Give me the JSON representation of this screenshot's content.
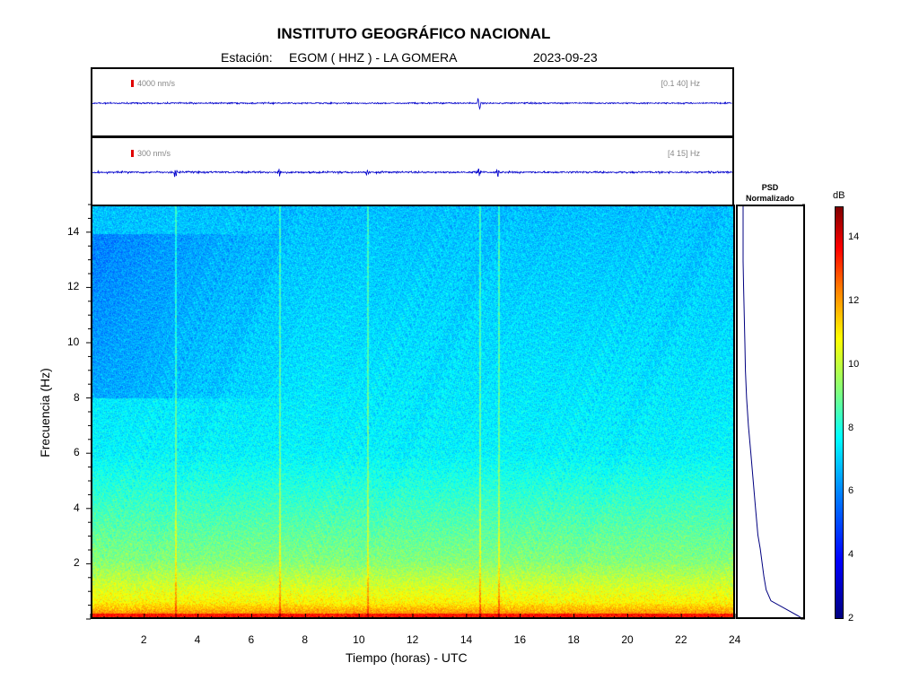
{
  "header": {
    "title": "INSTITUTO GEOGRÁFICO NACIONAL",
    "station_label": "Estación:",
    "station_value": "EGOM ( HHZ ) - LA GOMERA",
    "date": "2023-09-23"
  },
  "traces": [
    {
      "scale": "4000 nm/s",
      "band": "[0.1 40] Hz"
    },
    {
      "scale": "300 nm/s",
      "band": "[4 15] Hz"
    }
  ],
  "psd": {
    "title_line1": "PSD",
    "title_line2": "Normalizado"
  },
  "colors": {
    "trace": "#0000cc",
    "scale_marker": "#e00000",
    "psd_line": "#000080"
  },
  "chart_data": {
    "type": "heatmap",
    "title": "INSTITUTO GEOGRÁFICO NACIONAL",
    "xlabel": "Tiempo (horas) - UTC",
    "ylabel": "Frecuencia (Hz)",
    "xlim": [
      0,
      24
    ],
    "ylim": [
      0,
      15
    ],
    "x_ticks": [
      2,
      4,
      6,
      8,
      10,
      12,
      14,
      16,
      18,
      20,
      22,
      24
    ],
    "y_ticks": [
      2,
      4,
      6,
      8,
      10,
      12,
      14
    ],
    "colorbar": {
      "label": "dB",
      "range": [
        2,
        15
      ],
      "ticks": [
        2,
        4,
        6,
        8,
        10,
        12,
        14
      ],
      "colormap": "jet"
    },
    "psd_normalized": {
      "freq_hz": [
        0,
        0.3,
        0.6,
        1,
        1.5,
        2,
        2.5,
        3,
        4,
        5,
        6,
        7,
        8,
        9,
        10,
        11,
        12,
        13,
        14,
        15
      ],
      "value": [
        1.0,
        0.75,
        0.5,
        0.42,
        0.38,
        0.35,
        0.32,
        0.28,
        0.24,
        0.2,
        0.16,
        0.12,
        0.09,
        0.07,
        0.06,
        0.05,
        0.04,
        0.03,
        0.03,
        0.03
      ]
    },
    "events_hours": [
      3.1,
      7.0,
      10.3,
      14.5,
      15.2
    ]
  }
}
